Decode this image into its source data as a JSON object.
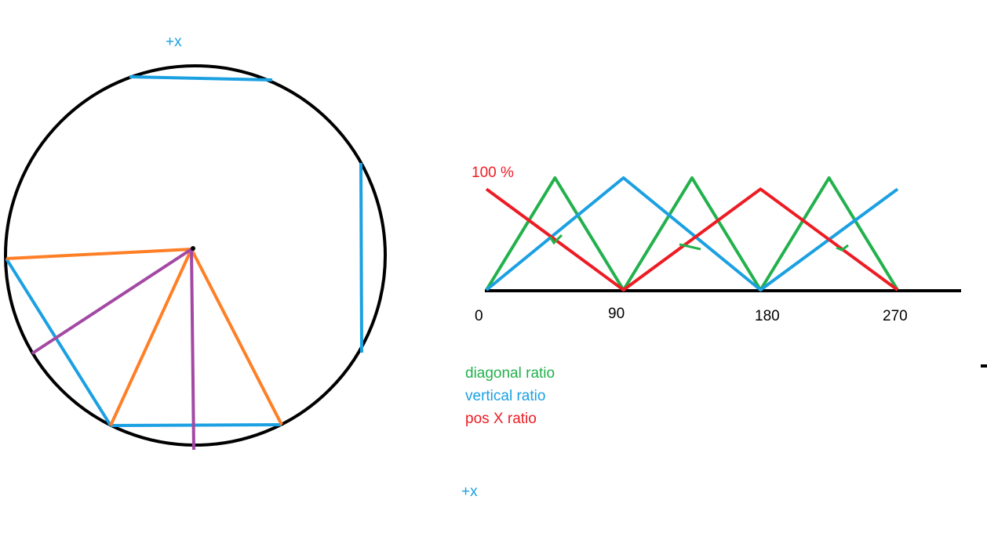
{
  "colors": {
    "green": "#22b14c",
    "blue": "#1ba0e2",
    "red": "#ed1c24",
    "orange": "#ff7f27",
    "purple": "#a349a4",
    "black": "#000000"
  },
  "labels": {
    "plus_x_top": "+x",
    "plus_x_bottom": "+x",
    "hundred_percent": "100 %"
  },
  "legend": {
    "diagonal": "diagonal ratio",
    "vertical": "vertical ratio",
    "pos_x": "pos X ratio"
  },
  "chart_data": {
    "type": "line",
    "x_ticks": [
      "0",
      "90",
      "180",
      "270"
    ],
    "ylabel": "100 %",
    "series": [
      {
        "name": "diagonal ratio",
        "color": "green",
        "x": [
          0,
          45,
          90,
          135,
          180,
          225,
          270
        ],
        "y": [
          0,
          1,
          0,
          1,
          0,
          1,
          0
        ]
      },
      {
        "name": "vertical ratio",
        "color": "blue",
        "x": [
          0,
          90,
          180,
          270
        ],
        "y": [
          0,
          1,
          0,
          0.9
        ]
      },
      {
        "name": "pos X ratio",
        "color": "red",
        "x": [
          0,
          90,
          180,
          270
        ],
        "y": [
          0.9,
          0,
          0.9,
          0
        ]
      }
    ]
  }
}
